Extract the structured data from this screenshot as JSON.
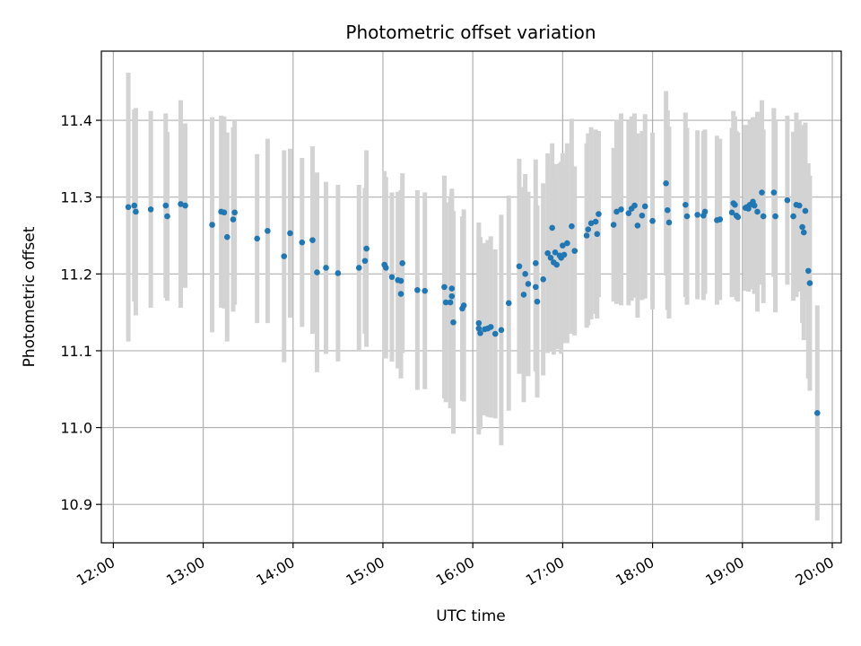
{
  "chart_data": {
    "type": "scatter",
    "title": "Photometric offset variation",
    "xlabel": "UTC time",
    "ylabel": "Photometric offset",
    "x_ticks": [
      "12:00",
      "13:00",
      "14:00",
      "15:00",
      "16:00",
      "17:00",
      "18:00",
      "19:00",
      "20:00"
    ],
    "y_ticks": [
      10.9,
      11.0,
      11.1,
      11.2,
      11.3,
      11.4
    ],
    "xlim": [
      "11:52",
      "20:06"
    ],
    "ylim": [
      10.85,
      11.49
    ],
    "grid": true,
    "colors": {
      "points": "#1f77b4",
      "errorbars": "#d3d3d3",
      "grid": "#b0b0b0"
    },
    "series": [
      {
        "points": [
          {
            "x": "12:10",
            "y": 11.287,
            "err": 0.175
          },
          {
            "x": "12:14",
            "y": 11.289,
            "err": 0.125
          },
          {
            "x": "12:15",
            "y": 11.281,
            "err": 0.135
          },
          {
            "x": "12:25",
            "y": 11.284,
            "err": 0.128
          },
          {
            "x": "12:35",
            "y": 11.289,
            "err": 0.12
          },
          {
            "x": "12:36",
            "y": 11.275,
            "err": 0.11
          },
          {
            "x": "12:45",
            "y": 11.291,
            "err": 0.135
          },
          {
            "x": "12:48",
            "y": 11.289,
            "err": 0.107
          },
          {
            "x": "13:06",
            "y": 11.264,
            "err": 0.14
          },
          {
            "x": "13:12",
            "y": 11.281,
            "err": 0.125
          },
          {
            "x": "13:14",
            "y": 11.28,
            "err": 0.125
          },
          {
            "x": "13:16",
            "y": 11.248,
            "err": 0.136
          },
          {
            "x": "13:20",
            "y": 11.271,
            "err": 0.12
          },
          {
            "x": "13:21",
            "y": 11.28,
            "err": 0.12
          },
          {
            "x": "13:36",
            "y": 11.246,
            "err": 0.11
          },
          {
            "x": "13:43",
            "y": 11.256,
            "err": 0.12
          },
          {
            "x": "13:54",
            "y": 11.223,
            "err": 0.138
          },
          {
            "x": "13:58",
            "y": 11.253,
            "err": 0.11
          },
          {
            "x": "14:06",
            "y": 11.241,
            "err": 0.11
          },
          {
            "x": "14:13",
            "y": 11.244,
            "err": 0.122
          },
          {
            "x": "14:16",
            "y": 11.202,
            "err": 0.13
          },
          {
            "x": "14:22",
            "y": 11.208,
            "err": 0.112
          },
          {
            "x": "14:30",
            "y": 11.201,
            "err": 0.115
          },
          {
            "x": "14:44",
            "y": 11.208,
            "err": 0.108
          },
          {
            "x": "14:48",
            "y": 11.217,
            "err": 0.095
          },
          {
            "x": "14:49",
            "y": 11.233,
            "err": 0.128
          },
          {
            "x": "15:01",
            "y": 11.212,
            "err": 0.122
          },
          {
            "x": "15:02",
            "y": 11.208,
            "err": 0.118
          },
          {
            "x": "15:06",
            "y": 11.196,
            "err": 0.11
          },
          {
            "x": "15:10",
            "y": 11.192,
            "err": 0.115
          },
          {
            "x": "15:12",
            "y": 11.191,
            "err": 0.118
          },
          {
            "x": "15:13",
            "y": 11.214,
            "err": 0.117
          },
          {
            "x": "15:12",
            "y": 11.174,
            "err": 0.11
          },
          {
            "x": "15:23",
            "y": 11.179,
            "err": 0.13
          },
          {
            "x": "15:28",
            "y": 11.178,
            "err": 0.128
          },
          {
            "x": "15:41",
            "y": 11.183,
            "err": 0.145
          },
          {
            "x": "15:42",
            "y": 11.163,
            "err": 0.13
          },
          {
            "x": "15:45",
            "y": 11.163,
            "err": 0.138
          },
          {
            "x": "15:46",
            "y": 11.181,
            "err": 0.13
          },
          {
            "x": "15:46",
            "y": 11.171,
            "err": 0.135
          },
          {
            "x": "15:47",
            "y": 11.137,
            "err": 0.145
          },
          {
            "x": "15:53",
            "y": 11.155,
            "err": 0.12
          },
          {
            "x": "15:54",
            "y": 11.159,
            "err": 0.125
          },
          {
            "x": "16:04",
            "y": 11.136,
            "err": 0.12
          },
          {
            "x": "16:04",
            "y": 11.129,
            "err": 0.138
          },
          {
            "x": "16:05",
            "y": 11.123,
            "err": 0.125
          },
          {
            "x": "16:08",
            "y": 11.128,
            "err": 0.112
          },
          {
            "x": "16:10",
            "y": 11.129,
            "err": 0.115
          },
          {
            "x": "16:12",
            "y": 11.131,
            "err": 0.118
          },
          {
            "x": "16:15",
            "y": 11.122,
            "err": 0.11
          },
          {
            "x": "16:19",
            "y": 11.127,
            "err": 0.15
          },
          {
            "x": "16:24",
            "y": 11.162,
            "err": 0.14
          },
          {
            "x": "16:31",
            "y": 11.21,
            "err": 0.14
          },
          {
            "x": "16:34",
            "y": 11.173,
            "err": 0.14
          },
          {
            "x": "16:35",
            "y": 11.2,
            "err": 0.13
          },
          {
            "x": "16:37",
            "y": 11.187,
            "err": 0.12
          },
          {
            "x": "16:42",
            "y": 11.214,
            "err": 0.135
          },
          {
            "x": "16:42",
            "y": 11.183,
            "err": 0.11
          },
          {
            "x": "16:43",
            "y": 11.164,
            "err": 0.125
          },
          {
            "x": "16:47",
            "y": 11.193,
            "err": 0.125
          },
          {
            "x": "16:50",
            "y": 11.227,
            "err": 0.13
          },
          {
            "x": "16:52",
            "y": 11.221,
            "err": 0.12
          },
          {
            "x": "16:53",
            "y": 11.26,
            "err": 0.11
          },
          {
            "x": "16:54",
            "y": 11.215,
            "err": 0.12
          },
          {
            "x": "16:55",
            "y": 11.228,
            "err": 0.115
          },
          {
            "x": "16:56",
            "y": 11.212,
            "err": 0.11
          },
          {
            "x": "16:58",
            "y": 11.224,
            "err": 0.12
          },
          {
            "x": "16:59",
            "y": 11.221,
            "err": 0.125
          },
          {
            "x": "17:00",
            "y": 11.237,
            "err": 0.12
          },
          {
            "x": "17:01",
            "y": 11.225,
            "err": 0.115
          },
          {
            "x": "17:03",
            "y": 11.24,
            "err": 0.13
          },
          {
            "x": "17:06",
            "y": 11.262,
            "err": 0.14
          },
          {
            "x": "17:08",
            "y": 11.23,
            "err": 0.11
          },
          {
            "x": "17:16",
            "y": 11.25,
            "err": 0.12
          },
          {
            "x": "17:17",
            "y": 11.258,
            "err": 0.125
          },
          {
            "x": "17:19",
            "y": 11.266,
            "err": 0.125
          },
          {
            "x": "17:22",
            "y": 11.268,
            "err": 0.12
          },
          {
            "x": "17:23",
            "y": 11.252,
            "err": 0.11
          },
          {
            "x": "17:24",
            "y": 11.278,
            "err": 0.108
          },
          {
            "x": "17:34",
            "y": 11.264,
            "err": 0.1
          },
          {
            "x": "17:36",
            "y": 11.281,
            "err": 0.12
          },
          {
            "x": "17:39",
            "y": 11.284,
            "err": 0.125
          },
          {
            "x": "17:44",
            "y": 11.279,
            "err": 0.12
          },
          {
            "x": "17:46",
            "y": 11.285,
            "err": 0.12
          },
          {
            "x": "17:48",
            "y": 11.289,
            "err": 0.12
          },
          {
            "x": "17:50",
            "y": 11.263,
            "err": 0.12
          },
          {
            "x": "17:53",
            "y": 11.276,
            "err": 0.11
          },
          {
            "x": "17:55",
            "y": 11.288,
            "err": 0.12
          },
          {
            "x": "18:00",
            "y": 11.269,
            "err": 0.115
          },
          {
            "x": "18:09",
            "y": 11.318,
            "err": 0.12
          },
          {
            "x": "18:10",
            "y": 11.283,
            "err": 0.13
          },
          {
            "x": "18:11",
            "y": 11.267,
            "err": 0.125
          },
          {
            "x": "18:22",
            "y": 11.29,
            "err": 0.12
          },
          {
            "x": "18:23",
            "y": 11.275,
            "err": 0.115
          },
          {
            "x": "18:30",
            "y": 11.277,
            "err": 0.11
          },
          {
            "x": "18:34",
            "y": 11.276,
            "err": 0.11
          },
          {
            "x": "18:35",
            "y": 11.281,
            "err": 0.107
          },
          {
            "x": "18:43",
            "y": 11.27,
            "err": 0.11
          },
          {
            "x": "18:45",
            "y": 11.271,
            "err": 0.105
          },
          {
            "x": "18:53",
            "y": 11.28,
            "err": 0.11
          },
          {
            "x": "18:54",
            "y": 11.292,
            "err": 0.12
          },
          {
            "x": "18:55",
            "y": 11.29,
            "err": 0.115
          },
          {
            "x": "18:56",
            "y": 11.276,
            "err": 0.11
          },
          {
            "x": "18:57",
            "y": 11.274,
            "err": 0.11
          },
          {
            "x": "19:02",
            "y": 11.286,
            "err": 0.108
          },
          {
            "x": "19:03",
            "y": 11.287,
            "err": 0.1
          },
          {
            "x": "19:04",
            "y": 11.285,
            "err": 0.108
          },
          {
            "x": "19:05",
            "y": 11.29,
            "err": 0.11
          },
          {
            "x": "19:07",
            "y": 11.294,
            "err": 0.11
          },
          {
            "x": "19:08",
            "y": 11.289,
            "err": 0.115
          },
          {
            "x": "19:10",
            "y": 11.281,
            "err": 0.13
          },
          {
            "x": "19:13",
            "y": 11.306,
            "err": 0.12
          },
          {
            "x": "19:14",
            "y": 11.275,
            "err": 0.113
          },
          {
            "x": "19:21",
            "y": 11.306,
            "err": 0.11
          },
          {
            "x": "19:22",
            "y": 11.275,
            "err": 0.125
          },
          {
            "x": "19:30",
            "y": 11.296,
            "err": 0.11
          },
          {
            "x": "19:34",
            "y": 11.275,
            "err": 0.11
          },
          {
            "x": "19:36",
            "y": 11.29,
            "err": 0.12
          },
          {
            "x": "19:38",
            "y": 11.289,
            "err": 0.112
          },
          {
            "x": "19:40",
            "y": 11.261,
            "err": 0.125
          },
          {
            "x": "19:41",
            "y": 11.254,
            "err": 0.14
          },
          {
            "x": "19:42",
            "y": 11.282,
            "err": 0.115
          },
          {
            "x": "19:44",
            "y": 11.204,
            "err": 0.14
          },
          {
            "x": "19:45",
            "y": 11.188,
            "err": 0.14
          },
          {
            "x": "19:50",
            "y": 11.019,
            "err": 0.14
          }
        ]
      }
    ]
  }
}
